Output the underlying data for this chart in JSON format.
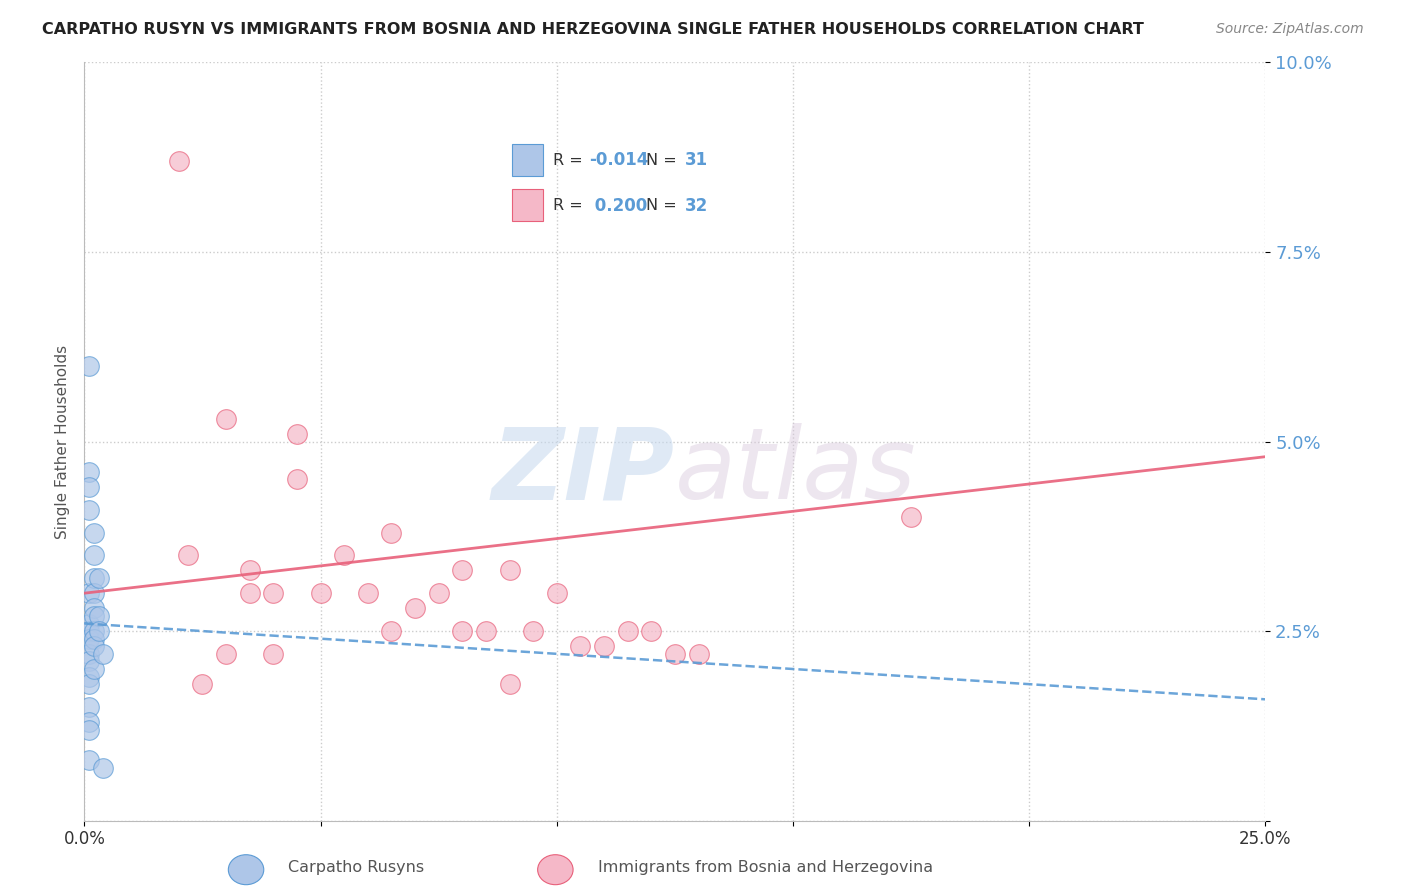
{
  "title": "CARPATHO RUSYN VS IMMIGRANTS FROM BOSNIA AND HERZEGOVINA SINGLE FATHER HOUSEHOLDS CORRELATION CHART",
  "source": "Source: ZipAtlas.com",
  "ylabel": "Single Father Households",
  "xlim": [
    0.0,
    0.25
  ],
  "ylim": [
    0.0,
    0.1
  ],
  "yticks": [
    0.0,
    0.025,
    0.05,
    0.075,
    0.1
  ],
  "ytick_labels": [
    "",
    "2.5%",
    "5.0%",
    "7.5%",
    "10.0%"
  ],
  "xticks": [
    0.0,
    0.05,
    0.1,
    0.15,
    0.2,
    0.25
  ],
  "xtick_labels": [
    "0.0%",
    "",
    "",
    "",
    "",
    "25.0%"
  ],
  "blue_R": -0.014,
  "blue_N": 31,
  "pink_R": 0.2,
  "pink_N": 32,
  "blue_color": "#aec6e8",
  "pink_color": "#f5b8c8",
  "blue_line_color": "#5b9bd5",
  "pink_line_color": "#e8607a",
  "watermark_zip": "ZIP",
  "watermark_atlas": "atlas",
  "blue_dots_x": [
    0.001,
    0.001,
    0.001,
    0.001,
    0.001,
    0.001,
    0.001,
    0.001,
    0.001,
    0.001,
    0.001,
    0.001,
    0.001,
    0.001,
    0.001,
    0.001,
    0.002,
    0.002,
    0.002,
    0.002,
    0.002,
    0.002,
    0.002,
    0.002,
    0.002,
    0.002,
    0.003,
    0.003,
    0.003,
    0.004,
    0.004
  ],
  "blue_dots_y": [
    0.06,
    0.046,
    0.044,
    0.041,
    0.03,
    0.026,
    0.025,
    0.024,
    0.022,
    0.021,
    0.019,
    0.018,
    0.015,
    0.013,
    0.012,
    0.008,
    0.038,
    0.035,
    0.032,
    0.03,
    0.028,
    0.027,
    0.025,
    0.024,
    0.023,
    0.02,
    0.032,
    0.027,
    0.025,
    0.022,
    0.007
  ],
  "pink_dots_x": [
    0.02,
    0.022,
    0.03,
    0.035,
    0.04,
    0.045,
    0.05,
    0.055,
    0.06,
    0.065,
    0.065,
    0.07,
    0.075,
    0.08,
    0.085,
    0.09,
    0.095,
    0.1,
    0.105,
    0.11,
    0.115,
    0.12,
    0.125,
    0.13,
    0.175,
    0.025,
    0.03,
    0.035,
    0.04,
    0.045,
    0.08,
    0.09
  ],
  "pink_dots_y": [
    0.087,
    0.035,
    0.053,
    0.033,
    0.03,
    0.051,
    0.03,
    0.035,
    0.03,
    0.038,
    0.025,
    0.028,
    0.03,
    0.033,
    0.025,
    0.033,
    0.025,
    0.03,
    0.023,
    0.023,
    0.025,
    0.025,
    0.022,
    0.022,
    0.04,
    0.018,
    0.022,
    0.03,
    0.022,
    0.045,
    0.025,
    0.018
  ],
  "blue_trend_x0": 0.0,
  "blue_trend_x1": 0.25,
  "blue_trend_y0": 0.026,
  "blue_trend_y1": 0.016,
  "pink_trend_x0": 0.0,
  "pink_trend_x1": 0.25,
  "pink_trend_y0": 0.03,
  "pink_trend_y1": 0.048
}
